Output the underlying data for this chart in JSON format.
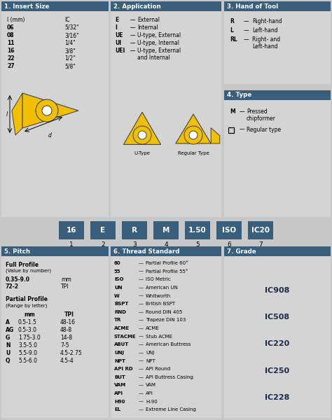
{
  "bg_color": "#c8c8c8",
  "header_color": "#3a5f7d",
  "panel_bg": "#d4d4d4",
  "section1_title": "1. Insert Size",
  "section1_col1": [
    "l (mm)",
    "06",
    "08",
    "11",
    "16",
    "22",
    "27"
  ],
  "section1_col2": [
    "IC",
    "5/32\"",
    "3/16\"",
    "1/4\"",
    "3/8\"",
    "1/2\"",
    "5/8\""
  ],
  "section2_title": "2. Application",
  "section2_items": [
    [
      "E",
      "External"
    ],
    [
      "I",
      "Internal"
    ],
    [
      "UE",
      "U-type, External"
    ],
    [
      "UI",
      "U-type, Internal"
    ],
    [
      "UEI",
      "U-type, External\nand Internal"
    ]
  ],
  "section3_title": "3. Hand of Tool",
  "section3_items": [
    [
      "R",
      "Right-hand"
    ],
    [
      "L",
      "Left-hand"
    ],
    [
      "RL",
      "Right- and\nLeft-hand"
    ]
  ],
  "section4_title": "4. Type",
  "section4_items": [
    [
      "M",
      "Pressed\nchipformer"
    ],
    [
      "□",
      "Regular type"
    ]
  ],
  "designation_boxes": [
    {
      "label": "16",
      "num": "1"
    },
    {
      "label": "E",
      "num": "2"
    },
    {
      "label": "R",
      "num": "3"
    },
    {
      "label": "M",
      "num": "4"
    },
    {
      "label": "1.50",
      "num": "5"
    },
    {
      "label": "ISO",
      "num": "6"
    },
    {
      "label": "IC20",
      "num": "7"
    }
  ],
  "section5_title": "5. Pitch",
  "section5_full_rows": [
    [
      "0.35-9.0",
      "mm"
    ],
    [
      "72-2",
      "TPI"
    ]
  ],
  "section5_partial_rows": [
    [
      "A",
      "0.5-1.5",
      "48-16"
    ],
    [
      "AG",
      "0.5-3.0",
      "48-8"
    ],
    [
      "G",
      "1.75-3.0",
      "14-8"
    ],
    [
      "N",
      "3.5-5.0",
      "7-5"
    ],
    [
      "U",
      "5.5-9.0",
      "4.5-2.75"
    ],
    [
      "Q",
      "5.5-6.0",
      "4.5-4"
    ]
  ],
  "section6_title": "6. Thread Standard",
  "section6_items": [
    [
      "60",
      "Partial Profile 60°"
    ],
    [
      "55",
      "Partial Profile 55°"
    ],
    [
      "ISO",
      "ISO Metric"
    ],
    [
      "UN",
      "American UN"
    ],
    [
      "W",
      "Whitworth"
    ],
    [
      "BSPT",
      "British BSPT"
    ],
    [
      "RND",
      "Round DIN 405"
    ],
    [
      "TR",
      "Trapeze DIN 103"
    ],
    [
      "ACME",
      "ACME"
    ],
    [
      "STACME",
      "Stub ACME"
    ],
    [
      "ABUT",
      "American Buttress"
    ],
    [
      "UNJ",
      "UNJ"
    ],
    [
      "NPT",
      "NPT"
    ],
    [
      "API RD",
      "API Round"
    ],
    [
      "BUT",
      "API Buttress Casing"
    ],
    [
      "VAM",
      "VAM"
    ],
    [
      "API",
      "API"
    ],
    [
      "H90",
      "H-90"
    ],
    [
      "EL",
      "Extreme Line Casing"
    ]
  ],
  "section7_title": "7. Grade",
  "section7_grades": [
    "IC908",
    "IC508",
    "IC220",
    "IC250",
    "IC228"
  ]
}
